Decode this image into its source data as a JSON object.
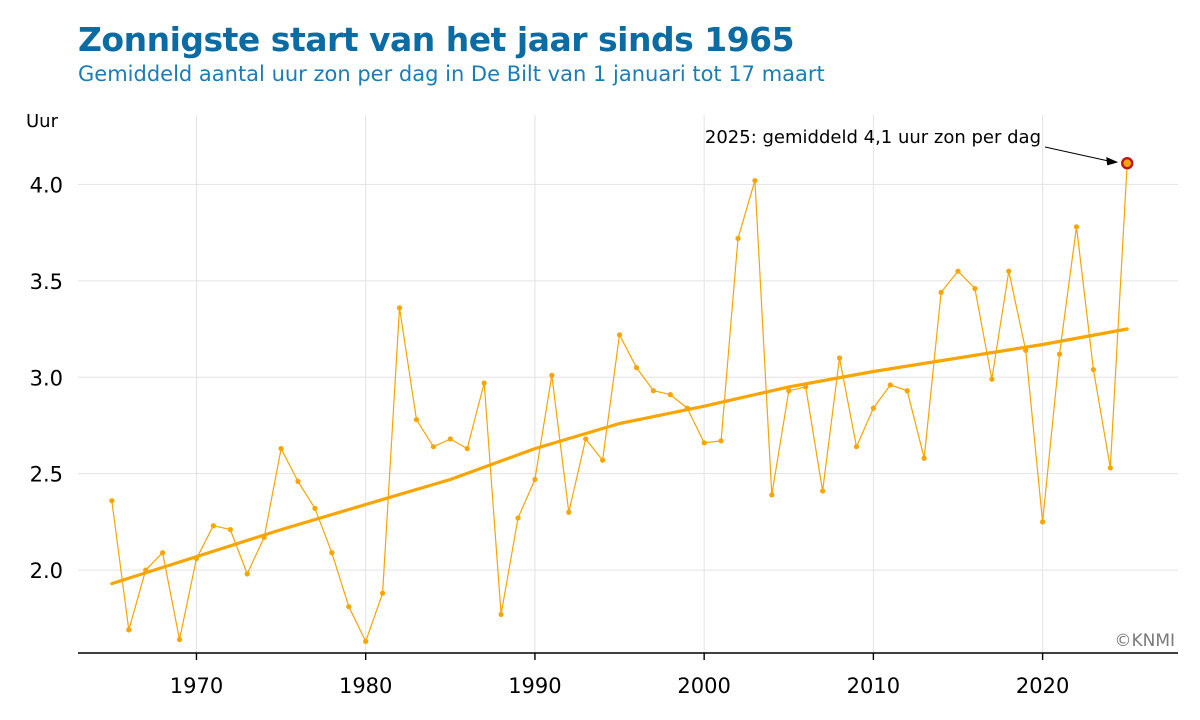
{
  "title": "Zonnigste start van het jaar sinds 1965",
  "subtitle": "Gemiddeld aantal uur zon per dag in De Bilt van 1 januari tot 17 maart",
  "credit": "©KNMI",
  "colors": {
    "title": "#0b6ba3",
    "subtitle": "#1a7db8",
    "series": "#f8a500",
    "highlight_fill": "#f8a500",
    "highlight_stroke": "#c0141c",
    "grid": "#e3e3e3"
  },
  "chart_data": {
    "type": "line",
    "title": "Zonnigste start van het jaar sinds 1965",
    "ylabel": "Uur",
    "xlabel": "",
    "xlim": [
      1963,
      2028
    ],
    "ylim": [
      1.57,
      4.36
    ],
    "xticks": [
      1970,
      1980,
      1990,
      2000,
      2010,
      2020
    ],
    "yticks": [
      2.0,
      2.5,
      3.0,
      3.5,
      4.0
    ],
    "ytick_labels": [
      "2.0",
      "2.5",
      "3.0",
      "3.5",
      "4.0"
    ],
    "grid": true,
    "series": [
      {
        "x": [
          1965,
          1966,
          1967,
          1968,
          1969,
          1970,
          1971,
          1972,
          1973,
          1974,
          1975,
          1976,
          1977,
          1978,
          1979,
          1980,
          1981,
          1982,
          1983,
          1984,
          1985,
          1986,
          1987,
          1988,
          1989,
          1990,
          1991,
          1992,
          1993,
          1994,
          1995,
          1996,
          1997,
          1998,
          1999,
          2000,
          2001,
          2002,
          2003,
          2004,
          2005,
          2006,
          2007,
          2008,
          2009,
          2010,
          2011,
          2012,
          2013,
          2014,
          2015,
          2016,
          2017,
          2018,
          2019,
          2020,
          2021,
          2022,
          2023,
          2024,
          2025
        ],
        "values": [
          2.36,
          1.69,
          2.0,
          2.09,
          1.64,
          2.06,
          2.23,
          2.21,
          1.98,
          2.17,
          2.63,
          2.46,
          2.32,
          2.09,
          1.81,
          1.63,
          1.88,
          3.36,
          2.78,
          2.64,
          2.68,
          2.63,
          2.97,
          1.77,
          2.27,
          2.47,
          3.01,
          2.3,
          2.68,
          2.57,
          3.22,
          3.05,
          2.93,
          2.91,
          2.84,
          2.66,
          2.67,
          3.72,
          4.02,
          2.39,
          2.93,
          2.95,
          2.41,
          3.1,
          2.64,
          2.84,
          2.96,
          2.93,
          2.58,
          3.44,
          3.55,
          3.46,
          2.99,
          3.55,
          3.14,
          2.25,
          3.12,
          3.78,
          3.04,
          2.53,
          4.11
        ]
      },
      {
        "x": [
          1965,
          1970,
          1975,
          1980,
          1985,
          1990,
          1995,
          2000,
          2005,
          2010,
          2015,
          2020,
          2025
        ],
        "values": [
          1.93,
          2.07,
          2.21,
          2.34,
          2.47,
          2.63,
          2.76,
          2.85,
          2.95,
          3.03,
          3.1,
          3.17,
          3.25
        ]
      }
    ],
    "annotations": [
      {
        "text": "2025: gemiddeld 4,1 uur zon per dag",
        "x": 2025,
        "y": 4.11
      }
    ]
  }
}
